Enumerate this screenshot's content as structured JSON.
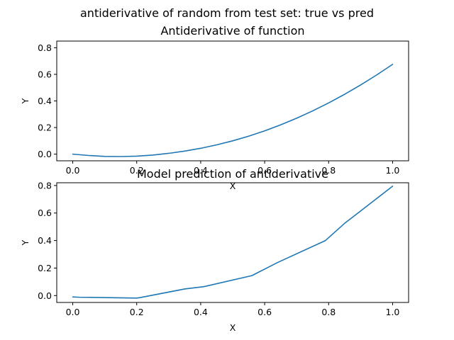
{
  "figure": {
    "title": "antiderivative of random from test set: true vs pred"
  },
  "colors": {
    "line": "#1f77b4",
    "background": "#ffffff",
    "axes": "#000000"
  },
  "chart_data": [
    {
      "type": "line",
      "title": "Antiderivative of function",
      "xlabel": "X",
      "ylabel": "Y",
      "xlim": [
        -0.05,
        1.05
      ],
      "ylim": [
        -0.05,
        0.85
      ],
      "xticks": [
        0.0,
        0.2,
        0.4,
        0.6,
        0.8,
        1.0
      ],
      "xtick_labels": [
        "0.0",
        "0.2",
        "0.4",
        "0.6",
        "0.8",
        "1.0"
      ],
      "yticks": [
        0.0,
        0.2,
        0.4,
        0.6,
        0.8
      ],
      "ytick_labels": [
        "0.0",
        "0.2",
        "0.4",
        "0.6",
        "0.8"
      ],
      "series": [
        {
          "x": [
            0.0,
            0.05,
            0.1,
            0.15,
            0.2,
            0.25,
            0.3,
            0.35,
            0.4,
            0.45,
            0.5,
            0.55,
            0.6,
            0.65,
            0.7,
            0.75,
            0.8,
            0.85,
            0.9,
            0.95,
            1.0
          ],
          "y": [
            0.0,
            -0.01,
            -0.017,
            -0.018,
            -0.015,
            -0.007,
            0.006,
            0.023,
            0.044,
            0.07,
            0.1,
            0.135,
            0.175,
            0.22,
            0.27,
            0.325,
            0.385,
            0.45,
            0.52,
            0.595,
            0.675
          ]
        }
      ]
    },
    {
      "type": "line",
      "title": "Model prediction of antiderivative",
      "xlabel": "X",
      "ylabel": "Y",
      "xlim": [
        -0.05,
        1.05
      ],
      "ylim": [
        -0.05,
        0.82
      ],
      "xticks": [
        0.0,
        0.2,
        0.4,
        0.6,
        0.8,
        1.0
      ],
      "xtick_labels": [
        "0.0",
        "0.2",
        "0.4",
        "0.6",
        "0.8",
        "1.0"
      ],
      "yticks": [
        0.0,
        0.2,
        0.4,
        0.6,
        0.8
      ],
      "ytick_labels": [
        "0.0",
        "0.2",
        "0.4",
        "0.6",
        "0.8"
      ],
      "series": [
        {
          "x": [
            0.0,
            0.02,
            0.2,
            0.21,
            0.35,
            0.41,
            0.56,
            0.64,
            0.79,
            0.85,
            1.0
          ],
          "y": [
            -0.01,
            -0.012,
            -0.018,
            -0.015,
            0.048,
            0.065,
            0.145,
            0.24,
            0.4,
            0.525,
            0.795
          ]
        }
      ]
    }
  ]
}
